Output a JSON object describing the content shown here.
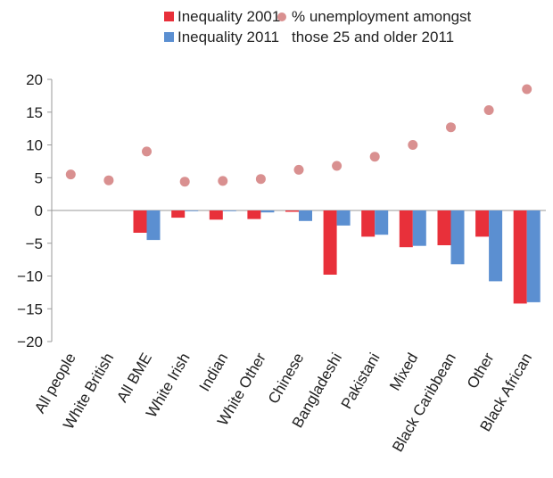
{
  "chart_data": {
    "type": "bar",
    "title": "",
    "xlabel": "",
    "ylabel": "",
    "ylim": [
      -20,
      20
    ],
    "yticks": [
      "20",
      "15",
      "10",
      "5",
      "0",
      "−5",
      "−10",
      "−15",
      "−20"
    ],
    "ytick_values": [
      20,
      15,
      10,
      5,
      0,
      -5,
      -10,
      -15,
      -20
    ],
    "grid": false,
    "legend_placement": "top",
    "categories": [
      "All people",
      "White British",
      "All BME",
      "White Irish",
      "Indian",
      "White Other",
      "Chinese",
      "Bangladeshi",
      "Pakistani",
      "Mixed",
      "Black Caribbean",
      "Other",
      "Black African"
    ],
    "series": [
      {
        "name": "Inequality 2001",
        "kind": "bar",
        "color": "#e8303a",
        "values": [
          null,
          null,
          -3.4,
          -1.1,
          -1.4,
          -1.3,
          -0.2,
          -9.8,
          -4.0,
          -5.6,
          -5.3,
          -4.0,
          -14.2
        ]
      },
      {
        "name": "Inequality 2011",
        "kind": "bar",
        "color": "#5b8fd1",
        "values": [
          null,
          null,
          -4.5,
          -0.1,
          -0.1,
          -0.3,
          -1.6,
          -2.3,
          -3.7,
          -5.4,
          -8.2,
          -10.8,
          -14.0
        ]
      },
      {
        "name": "% unemployment amongst those 25 and older 2011",
        "kind": "scatter",
        "color": "#d99090",
        "values": [
          5.5,
          4.6,
          9.0,
          4.4,
          4.5,
          4.8,
          6.2,
          6.8,
          8.2,
          10.0,
          12.7,
          15.3,
          18.5
        ]
      }
    ],
    "legend": {
      "item1": "Inequality 2001",
      "item2": "Inequality 2011",
      "item3_line1": "% unemployment amongst",
      "item3_line2": "those 25 and older 2011"
    }
  }
}
